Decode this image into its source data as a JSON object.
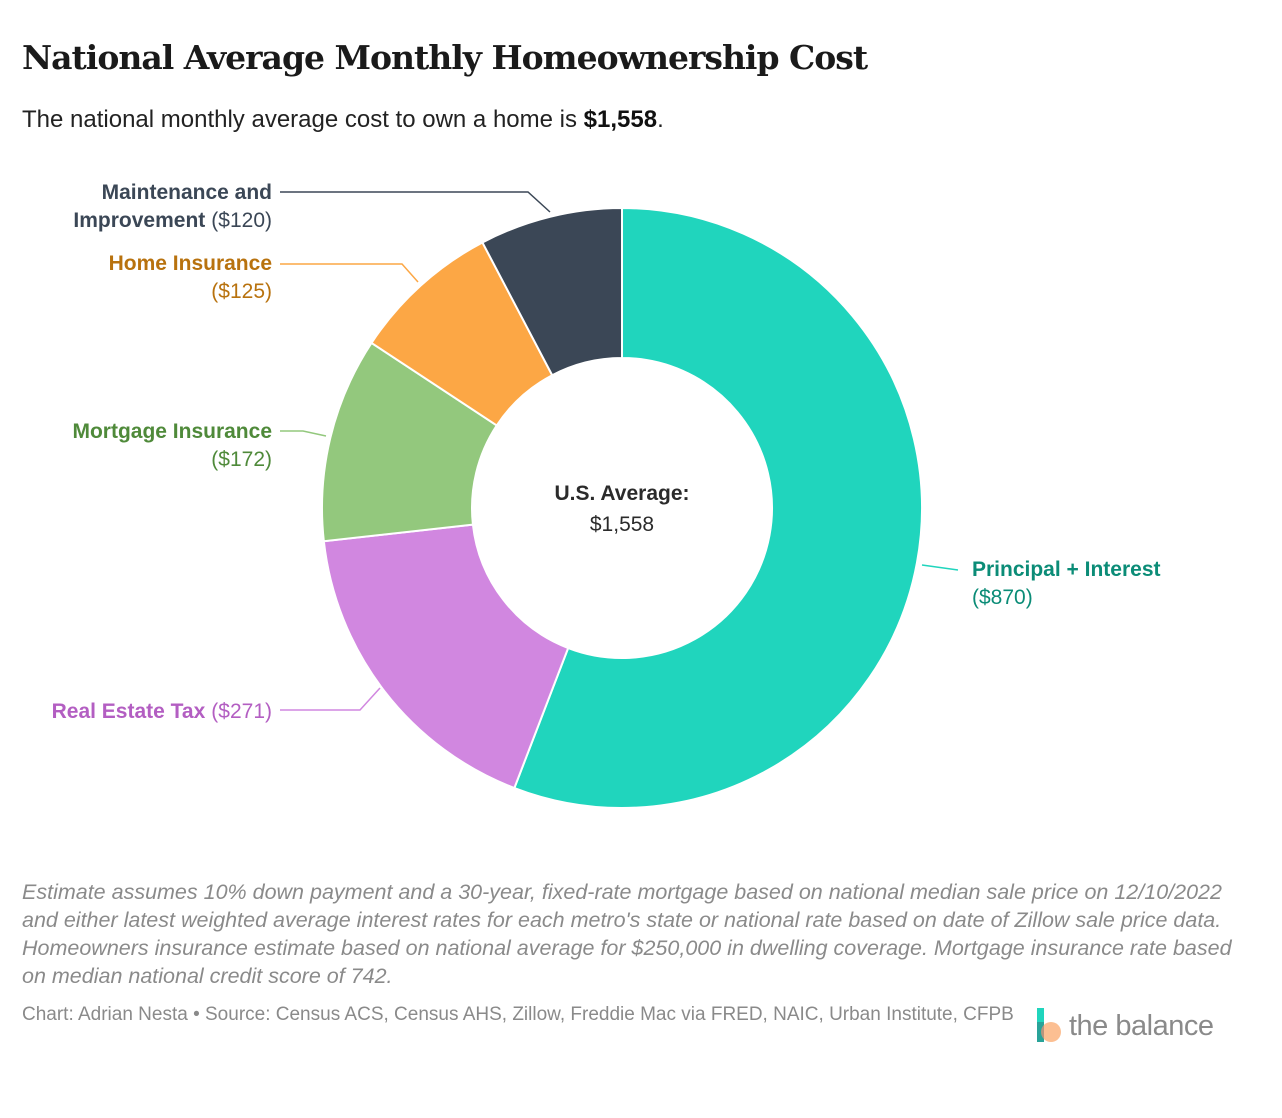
{
  "header": {
    "title": "National Average Monthly Homeownership Cost",
    "subtitle_prefix": "The national monthly average cost to own a home is ",
    "subtitle_value": "$1,558",
    "subtitle_suffix": "."
  },
  "chart_data": {
    "type": "pie",
    "variant": "donut",
    "title": "National Average Monthly Homeownership Cost",
    "center_label": "U.S. Average:",
    "center_value": "$1,558",
    "total": 1558,
    "slices": [
      {
        "key": "principal",
        "lines": [
          "Principal + Interest"
        ],
        "value_label": "($870)",
        "value": 870,
        "color": "#20d5bd",
        "label_color": "#0b8c77"
      },
      {
        "key": "realestate",
        "lines": [
          "Real Estate Tax"
        ],
        "value_label": "($271)",
        "value": 271,
        "color": "#d187e0",
        "label_color": "#b35ec2"
      },
      {
        "key": "mortgageins",
        "lines": [
          "Mortgage Insurance"
        ],
        "value_label": "($172)",
        "value": 172,
        "color": "#93c87d",
        "label_color": "#4f8a3a"
      },
      {
        "key": "homeins",
        "lines": [
          "Home Insurance"
        ],
        "value_label": "($125)",
        "value": 125,
        "color": "#fca745",
        "label_color": "#b8720e"
      },
      {
        "key": "maintenance",
        "lines": [
          "Maintenance and",
          "Improvement"
        ],
        "value_label": "($120)",
        "value": 120,
        "color": "#3b4756",
        "label_color": "#3b4756"
      }
    ]
  },
  "footer": {
    "notes": "Estimate assumes 10% down payment and a 30-year, fixed-rate mortgage based on national median sale price on 12/10/2022 and either latest weighted average interest rates for each metro's state or national rate based on date of Zillow sale price data. Homeowners insurance estimate based on national average for $250,000 in dwelling coverage. Mortgage insurance rate based on median national credit score of 742.",
    "credit": "Chart: Adrian Nesta • Source: Census ACS, Census AHS, Zillow, Freddie Mac via FRED, NAIC, Urban Institute, CFPB",
    "brand": "the balance"
  }
}
